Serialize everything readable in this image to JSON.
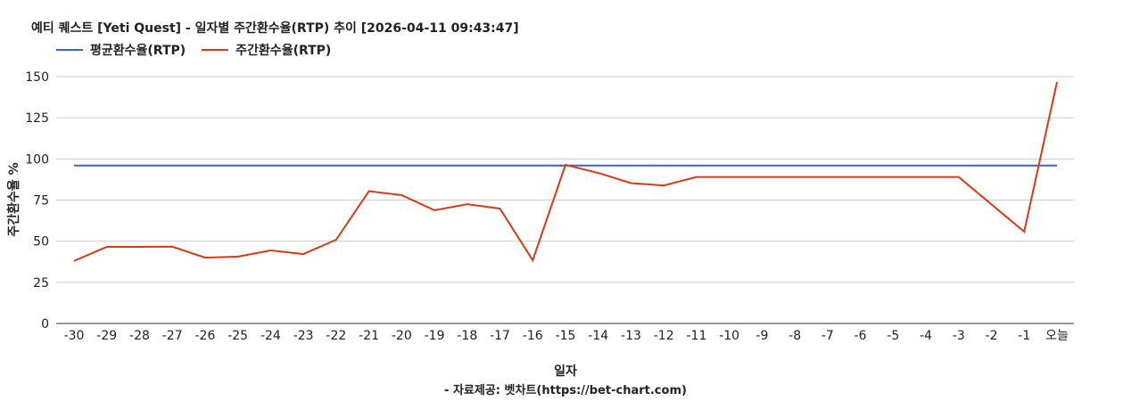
{
  "chart_data": {
    "type": "line",
    "title": "예티 퀘스트 [Yeti Quest] - 일자별 주간환수율(RTP) 추이 [2026-04-11 09:43:47]",
    "xlabel": "일자",
    "ylabel": "주간환수율 %",
    "footer": "- 자료제공: 벳차트(https://bet-chart.com)",
    "categories": [
      "-30",
      "-29",
      "-28",
      "-27",
      "-26",
      "-25",
      "-24",
      "-23",
      "-22",
      "-21",
      "-20",
      "-19",
      "-18",
      "-17",
      "-16",
      "-15",
      "-14",
      "-13",
      "-12",
      "-11",
      "-10",
      "-9",
      "-8",
      "-7",
      "-6",
      "-5",
      "-4",
      "-3",
      "-2",
      "-1",
      "오늘"
    ],
    "ylim": [
      0,
      150
    ],
    "yticks": [
      0,
      25,
      50,
      75,
      100,
      125,
      150
    ],
    "grid": true,
    "legend_position": "top-left",
    "series": [
      {
        "name": "평균환수율(RTP)",
        "color": "#3366cc",
        "values": [
          96,
          96,
          96,
          96,
          96,
          96,
          96,
          96,
          96,
          96,
          96,
          96,
          96,
          96,
          96,
          96,
          96,
          96,
          96,
          96,
          96,
          96,
          96,
          96,
          96,
          96,
          96,
          96,
          96,
          96,
          96
        ]
      },
      {
        "name": "주간환수율(RTP)",
        "color": "#dc3912",
        "values": [
          38,
          46.6,
          46.6,
          46.7,
          40,
          40.6,
          44.4,
          42.2,
          50.9,
          80.4,
          78,
          68.8,
          72.5,
          69.8,
          38.4,
          96.4,
          91.5,
          85.3,
          83.9,
          89,
          89,
          89,
          89,
          89,
          89,
          89,
          89,
          89,
          72.4,
          55.8,
          146.7
        ]
      }
    ]
  }
}
